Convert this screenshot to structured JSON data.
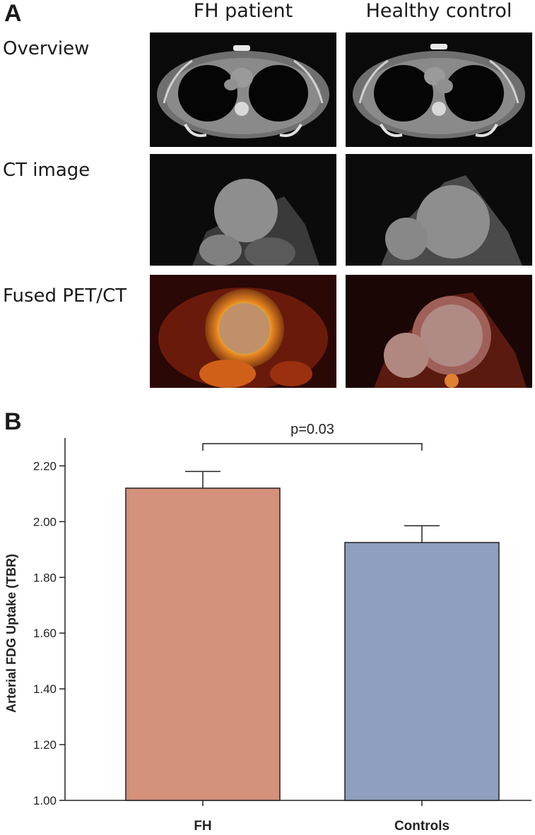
{
  "panelA": {
    "letter": "A",
    "columns": [
      "FH patient",
      "Healthy control"
    ],
    "rows": [
      "Overview",
      "CT image",
      "Fused PET/CT"
    ]
  },
  "panelB": {
    "letter": "B"
  },
  "colors": {
    "fh_bar": "#d4917b",
    "controls_bar": "#8e9fbf"
  },
  "chart_data": {
    "type": "bar",
    "categories": [
      "FH",
      "Controls"
    ],
    "values": [
      2.12,
      1.925
    ],
    "error_upper": [
      2.18,
      1.985
    ],
    "ylabel": "Arterial FDG Uptake (TBR)",
    "xlabel": "",
    "ylim": [
      1.0,
      2.3
    ],
    "yticks": [
      "1.00",
      "1.20",
      "1.40",
      "1.60",
      "1.80",
      "2.00",
      "2.20"
    ],
    "annotation": "p=0.03",
    "grid": false
  }
}
